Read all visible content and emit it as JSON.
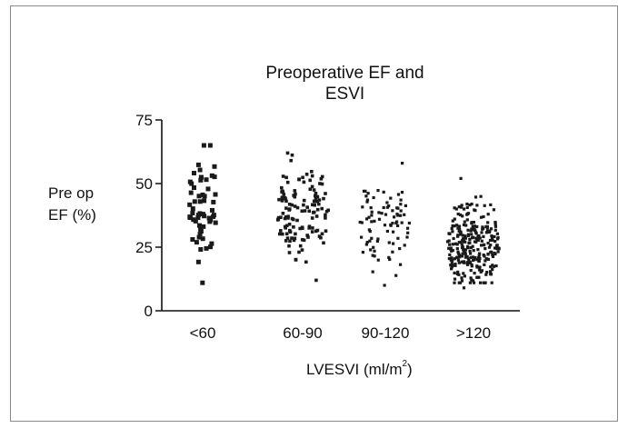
{
  "chart_data": {
    "type": "scatter",
    "title_lines": [
      "Preoperative EF and",
      "ESVI"
    ],
    "ylabel_lines": [
      "Pre op",
      "EF (%)"
    ],
    "xlabel_main": "LVESVI (ml/m",
    "xlabel_sup": "2",
    "xlabel_end": ")",
    "categories": [
      "<60",
      "60-90",
      "90-120",
      ">120"
    ],
    "yticks": [
      0,
      25,
      50,
      75
    ],
    "ylim": [
      0,
      75
    ],
    "grid": false,
    "marker_color": "#1a1a1a",
    "groups": [
      {
        "category": "<60",
        "count": 60,
        "min": 11,
        "max": 65,
        "center": 42
      },
      {
        "category": "60-90",
        "count": 130,
        "min": 12,
        "max": 62,
        "center": 40
      },
      {
        "category": "90-120",
        "count": 85,
        "min": 10,
        "max": 58,
        "center": 33
      },
      {
        "category": ">120",
        "count": 280,
        "min": 9,
        "max": 52,
        "center": 26
      }
    ]
  }
}
